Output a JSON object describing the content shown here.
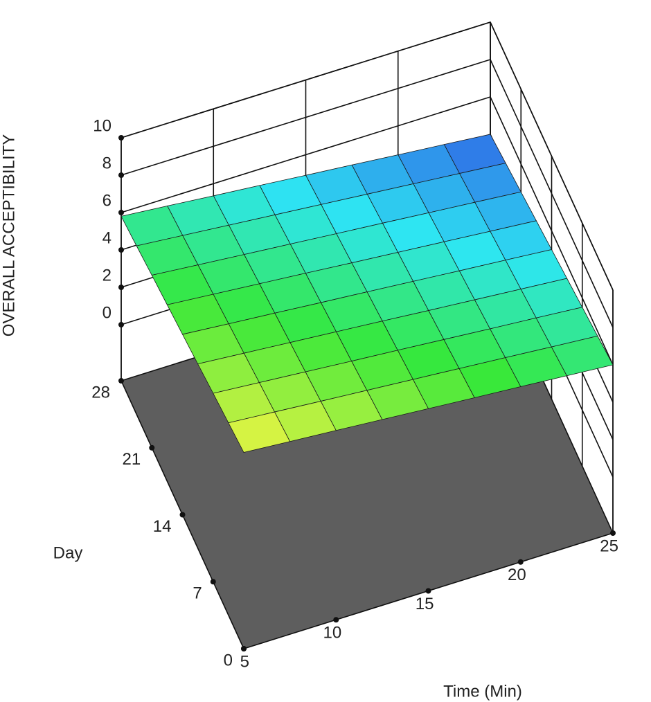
{
  "chart_data": {
    "type": "surface",
    "x_label": "Time (Min)",
    "y_label": "Day",
    "z_label": "OVERALL ACCEPTIBILITY",
    "xlim": [
      5,
      25
    ],
    "xticks": [
      5,
      10,
      15,
      20,
      25
    ],
    "ylim": [
      0,
      28
    ],
    "yticks": [
      0,
      7,
      14,
      21,
      28
    ],
    "zlim": [
      -3,
      10
    ],
    "zticks": [
      0,
      2,
      4,
      6,
      8,
      10
    ],
    "x": [
      5,
      7.5,
      10,
      12.5,
      15,
      17.5,
      20,
      22.5,
      25
    ],
    "y": [
      0,
      3.5,
      7,
      10.5,
      14,
      17.5,
      21,
      24.5,
      28
    ],
    "z": [
      [
        7.5,
        7.31,
        7.13,
        6.94,
        6.75,
        6.56,
        6.38,
        6.19,
        6.0
      ],
      [
        7.29,
        7.1,
        6.9,
        6.71,
        6.52,
        6.33,
        6.14,
        5.94,
        5.75
      ],
      [
        7.08,
        6.88,
        6.68,
        6.48,
        6.29,
        6.09,
        5.89,
        5.7,
        5.5
      ],
      [
        6.86,
        6.66,
        6.46,
        6.26,
        6.06,
        5.85,
        5.65,
        5.45,
        5.25
      ],
      [
        6.65,
        6.44,
        6.24,
        6.03,
        5.83,
        5.62,
        5.41,
        5.21,
        5.0
      ],
      [
        6.44,
        6.23,
        6.02,
        5.81,
        5.59,
        5.38,
        5.17,
        4.96,
        4.75
      ],
      [
        6.23,
        6.01,
        5.79,
        5.58,
        5.36,
        5.15,
        4.93,
        4.72,
        4.5
      ],
      [
        6.01,
        5.79,
        5.57,
        5.35,
        5.13,
        4.91,
        4.69,
        4.47,
        4.25
      ],
      [
        5.8,
        5.58,
        5.35,
        5.13,
        4.9,
        4.68,
        4.45,
        4.23,
        4.0
      ]
    ],
    "colormap": [
      "#2f62e6",
      "#2ee6f2",
      "#36e83a",
      "#f6f545"
    ],
    "floor_color": "#5e5e5e"
  }
}
